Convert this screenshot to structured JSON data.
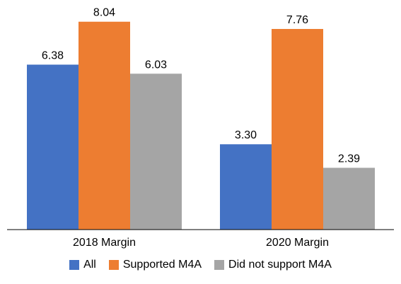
{
  "chart_data": {
    "type": "bar",
    "title": "",
    "xlabel": "",
    "ylabel": "",
    "categories": [
      "2018 Margin",
      "2020 Margin"
    ],
    "series": [
      {
        "name": "All",
        "color": "#4472C4",
        "values": [
          6.38,
          3.3
        ],
        "labels": [
          "6.38",
          "3.30"
        ]
      },
      {
        "name": "Supported M4A",
        "color": "#ED7D31",
        "values": [
          8.04,
          7.76
        ],
        "labels": [
          "8.04",
          "7.76"
        ]
      },
      {
        "name": "Did not support M4A",
        "color": "#A5A5A5",
        "values": [
          6.03,
          2.39
        ],
        "labels": [
          "6.03",
          "2.39"
        ]
      }
    ],
    "ylim": [
      0,
      8.5
    ],
    "grid": false,
    "legend_position": "bottom"
  }
}
